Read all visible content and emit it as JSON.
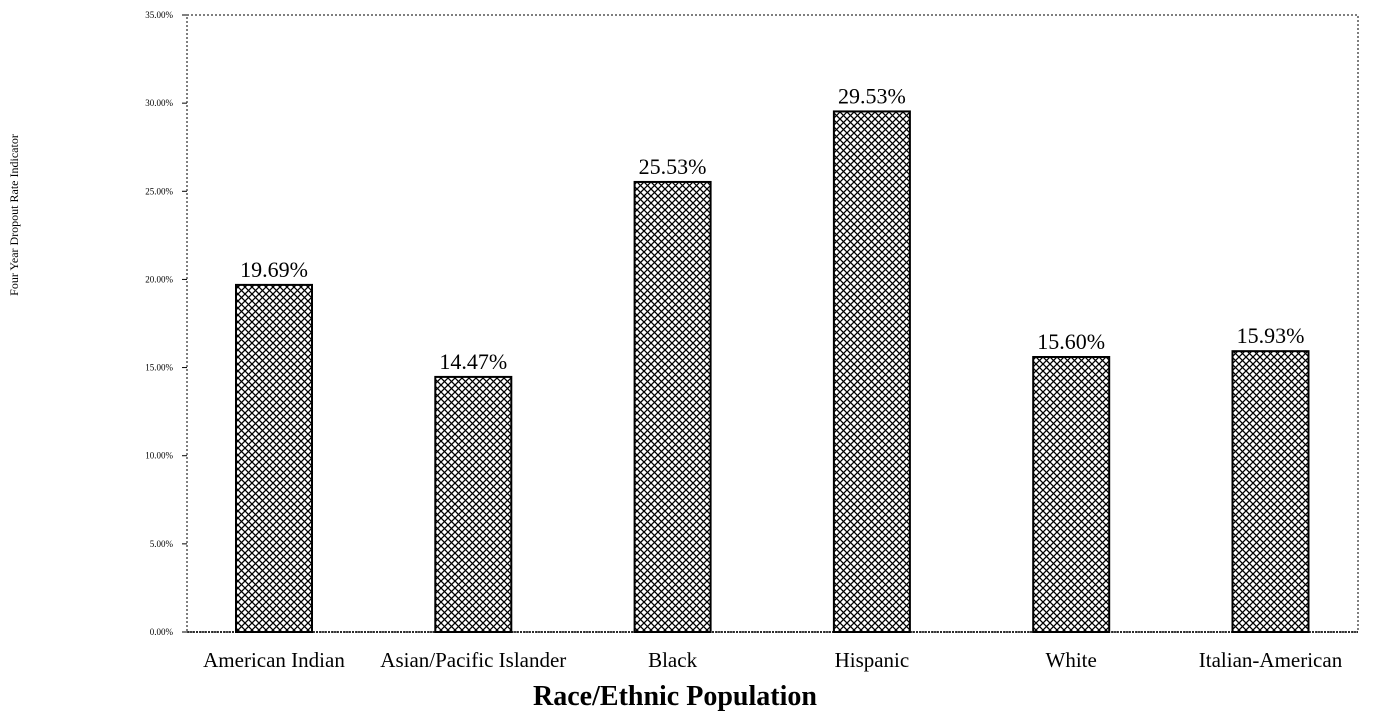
{
  "chart_data": {
    "type": "bar",
    "title": "",
    "xlabel": "Race/Ethnic Population",
    "ylabel": "Four Year Dropout Rate Indicator",
    "categories": [
      "American Indian",
      "Asian/Pacific Islander",
      "Black",
      "Hispanic",
      "White",
      "Italian-American"
    ],
    "values": [
      19.69,
      14.47,
      25.53,
      29.53,
      15.6,
      15.93
    ],
    "data_labels": [
      "19.69%",
      "14.47%",
      "25.53%",
      "29.53%",
      "15.60%",
      "15.93%"
    ],
    "ylim": [
      0,
      35
    ],
    "yticks": [
      0,
      5,
      10,
      15,
      20,
      25,
      30,
      35
    ],
    "ytick_labels": [
      "0.00%",
      "5.00%",
      "10.00%",
      "15.00%",
      "20.00%",
      "25.00%",
      "30.00%",
      "35.00%"
    ],
    "grid": false,
    "legend": "none",
    "bar_fill": "crosshatch",
    "colors": {
      "bar_stroke": "#000000",
      "hatch": "#000000",
      "background": "#ffffff",
      "frame": "#555555"
    }
  }
}
